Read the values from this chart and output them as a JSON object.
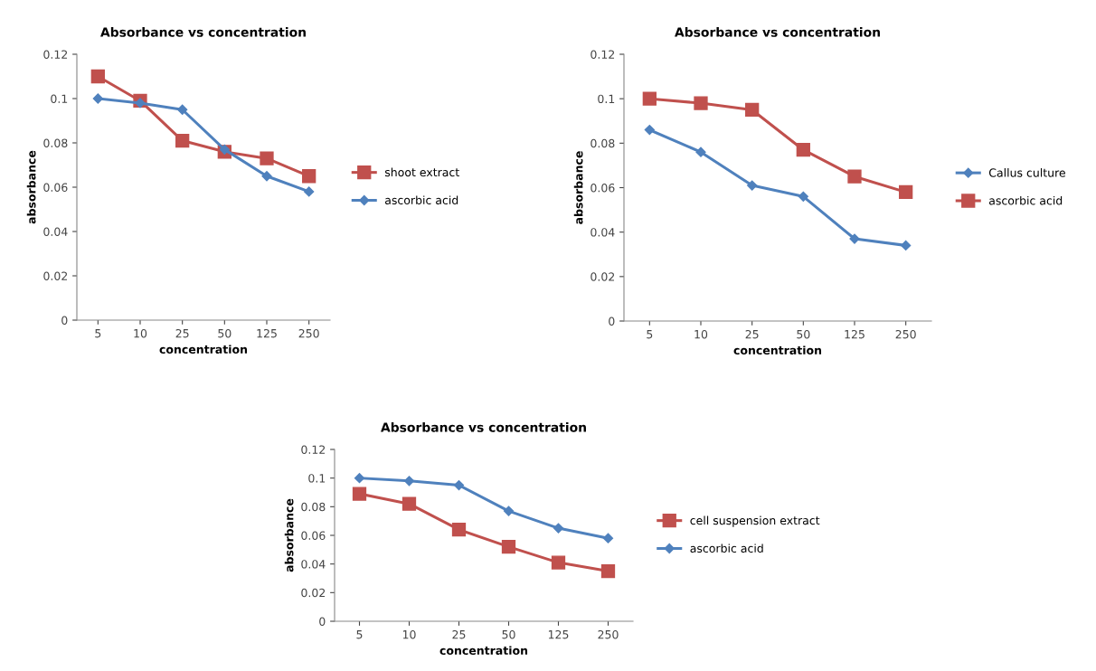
{
  "chart_data": [
    {
      "type": "line",
      "title": "Absorbance vs concentration",
      "xlabel": "concentration",
      "ylabel": "absorbance",
      "categories": [
        "5",
        "10",
        "25",
        "50",
        "125",
        "250"
      ],
      "ylim": [
        0,
        0.12
      ],
      "yticks": [
        0,
        0.02,
        0.04,
        0.06,
        0.08,
        0.1,
        0.12
      ],
      "grid": false,
      "legend": "right",
      "series": [
        {
          "name": "shoot extract",
          "color": "#c0504d",
          "marker": "square",
          "values": [
            0.11,
            0.099,
            0.081,
            0.076,
            0.073,
            0.065
          ]
        },
        {
          "name": "ascorbic acid",
          "color": "#4f81bd",
          "marker": "diamond",
          "values": [
            0.1,
            0.098,
            0.095,
            0.077,
            0.065,
            0.058
          ]
        }
      ]
    },
    {
      "type": "line",
      "title": "Absorbance vs concentration",
      "xlabel": "concentration",
      "ylabel": "absorbance",
      "categories": [
        "5",
        "10",
        "25",
        "50",
        "125",
        "250"
      ],
      "ylim": [
        0,
        0.12
      ],
      "yticks": [
        0,
        0.02,
        0.04,
        0.06,
        0.08,
        0.1,
        0.12
      ],
      "grid": false,
      "legend": "right",
      "series": [
        {
          "name": "Callus culture",
          "color": "#4f81bd",
          "marker": "diamond",
          "values": [
            0.086,
            0.076,
            0.061,
            0.056,
            0.037,
            0.034
          ]
        },
        {
          "name": "ascorbic acid",
          "color": "#c0504d",
          "marker": "square",
          "values": [
            0.1,
            0.098,
            0.095,
            0.077,
            0.065,
            0.058
          ]
        }
      ]
    },
    {
      "type": "line",
      "title": "Absorbance vs concentration",
      "xlabel": "concentration",
      "ylabel": "absorbance",
      "categories": [
        "5",
        "10",
        "25",
        "50",
        "125",
        "250"
      ],
      "ylim": [
        0,
        0.12
      ],
      "yticks": [
        0,
        0.02,
        0.04,
        0.06,
        0.08,
        0.1,
        0.12
      ],
      "grid": false,
      "legend": "right",
      "series": [
        {
          "name": "cell suspension extract",
          "color": "#c0504d",
          "marker": "square",
          "values": [
            0.089,
            0.082,
            0.064,
            0.052,
            0.041,
            0.035
          ]
        },
        {
          "name": "ascorbic acid",
          "color": "#4f81bd",
          "marker": "diamond",
          "values": [
            0.1,
            0.098,
            0.095,
            0.077,
            0.065,
            0.058
          ]
        }
      ]
    }
  ]
}
